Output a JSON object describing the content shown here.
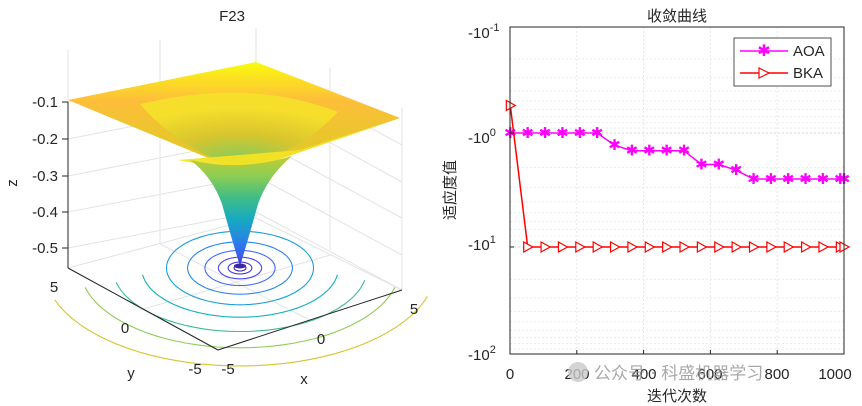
{
  "chart_data": [
    {
      "type": "surface3d",
      "title": "F23",
      "xlabel": "x",
      "ylabel": "y",
      "zlabel": "z",
      "z_ticks": [
        "-0.1",
        "-0.2",
        "-0.3",
        "-0.4",
        "-0.5"
      ],
      "x_ticks": [
        "-5",
        "0",
        "5"
      ],
      "y_ticks": [
        "5",
        "0",
        "-5"
      ],
      "x_range": [
        -5,
        5
      ],
      "y_range": [
        -5,
        5
      ],
      "z_range": [
        -0.55,
        -0.1
      ],
      "contour_levels": 10,
      "colormap": "parula"
    },
    {
      "type": "line",
      "title": "收敛曲线",
      "xlabel": "迭代次数",
      "ylabel": "适应度值",
      "xlim": [
        0,
        1000
      ],
      "yscale": "symlog",
      "x_ticks": [
        "0",
        "200",
        "400",
        "600",
        "800",
        "1000"
      ],
      "y_ticks": [
        {
          "base": "-10",
          "exp": "-1"
        },
        {
          "base": "-10",
          "exp": "0"
        },
        {
          "base": "-10",
          "exp": "1"
        },
        {
          "base": "-10",
          "exp": "2"
        }
      ],
      "legend": "top-right",
      "series": [
        {
          "name": "AOA",
          "color": "#ff00ff",
          "marker": "*",
          "x": [
            1,
            53,
            105,
            157,
            209,
            261,
            313,
            365,
            417,
            469,
            521,
            573,
            625,
            677,
            729,
            781,
            833,
            885,
            937,
            989,
            1000
          ],
          "y": [
            -1.0,
            -1.0,
            -1.0,
            -1.0,
            -1.0,
            -1.0,
            -1.28,
            -1.43,
            -1.43,
            -1.43,
            -1.43,
            -1.89,
            -1.89,
            -2.12,
            -2.53,
            -2.53,
            -2.53,
            -2.53,
            -2.53,
            -2.53,
            -2.53
          ]
        },
        {
          "name": "BKA",
          "color": "#ff0000",
          "marker": ">",
          "x": [
            1,
            53,
            105,
            157,
            209,
            261,
            313,
            365,
            417,
            469,
            521,
            573,
            625,
            677,
            729,
            781,
            833,
            885,
            937,
            989,
            1000
          ],
          "y": [
            -0.55,
            -10.0,
            -10.0,
            -10.0,
            -10.0,
            -10.0,
            -10.0,
            -10.0,
            -10.0,
            -10.0,
            -10.0,
            -10.0,
            -10.0,
            -10.0,
            -10.0,
            -10.0,
            -10.0,
            -10.0,
            -10.0,
            -10.0,
            -10.0
          ]
        }
      ]
    }
  ],
  "watermark": "公众号 · 科盛机器学习"
}
